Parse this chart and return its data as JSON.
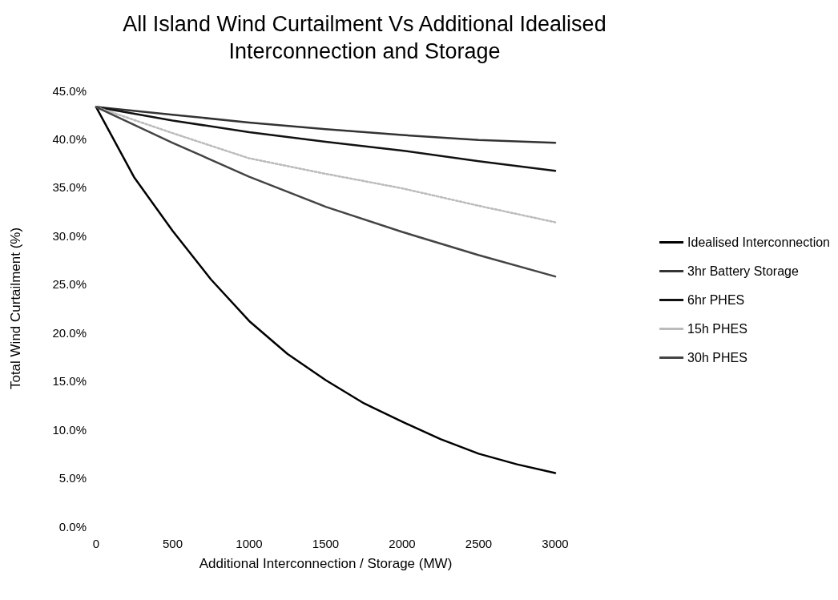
{
  "chart_data": {
    "type": "line",
    "title": "All Island Wind Curtailment Vs Additional Idealised\nInterconnection and Storage",
    "xlabel": "Additional Interconnection / Storage (MW)",
    "ylabel": "Total Wind Curtailment (%)",
    "x": [
      0,
      250,
      500,
      750,
      1000,
      1250,
      1500,
      1750,
      2000,
      2250,
      2500,
      2750,
      3000
    ],
    "series": [
      {
        "name": "Idealised Interconnection",
        "color": "#000000",
        "values": [
          43.3,
          36.0,
          30.5,
          25.5,
          21.2,
          17.8,
          15.1,
          12.7,
          10.8,
          9.0,
          7.5,
          6.4,
          5.5
        ]
      },
      {
        "name": "3hr Battery Storage",
        "color": "#333333",
        "values": [
          43.3,
          null,
          42.5,
          null,
          41.7,
          null,
          41.0,
          null,
          40.4,
          null,
          39.9,
          null,
          39.6
        ]
      },
      {
        "name": "6hr PHES",
        "color": "#111111",
        "values": [
          43.3,
          null,
          41.9,
          null,
          40.7,
          null,
          39.7,
          null,
          38.8,
          null,
          37.7,
          null,
          36.7
        ]
      },
      {
        "name": "15h PHES",
        "color": "#bbbbbb",
        "line_style": "dotted",
        "values": [
          43.3,
          null,
          40.6,
          null,
          38.0,
          null,
          36.4,
          null,
          34.9,
          null,
          33.1,
          null,
          31.4
        ]
      },
      {
        "name": "30h PHES",
        "color": "#444444",
        "values": [
          43.3,
          null,
          39.6,
          null,
          36.1,
          null,
          33.0,
          null,
          30.4,
          null,
          28.0,
          null,
          25.8
        ]
      }
    ],
    "xlim": [
      0,
      3000
    ],
    "xticks": [
      0,
      500,
      1000,
      1500,
      2000,
      2500,
      3000
    ],
    "ylim": [
      0,
      45
    ],
    "yticks": [
      {
        "value": 0,
        "label": "0.0%"
      },
      {
        "value": 5,
        "label": "5.0%"
      },
      {
        "value": 10,
        "label": "10.0%"
      },
      {
        "value": 15,
        "label": "15.0%"
      },
      {
        "value": 20,
        "label": "20.0%"
      },
      {
        "value": 25,
        "label": "25.0%"
      },
      {
        "value": 30,
        "label": "30.0%"
      },
      {
        "value": 35,
        "label": "35.0%"
      },
      {
        "value": 40,
        "label": "40.0%"
      },
      {
        "value": 45,
        "label": "45.0%"
      }
    ],
    "grid": false,
    "legend": "right",
    "marker": "none",
    "line_style": "solid"
  }
}
